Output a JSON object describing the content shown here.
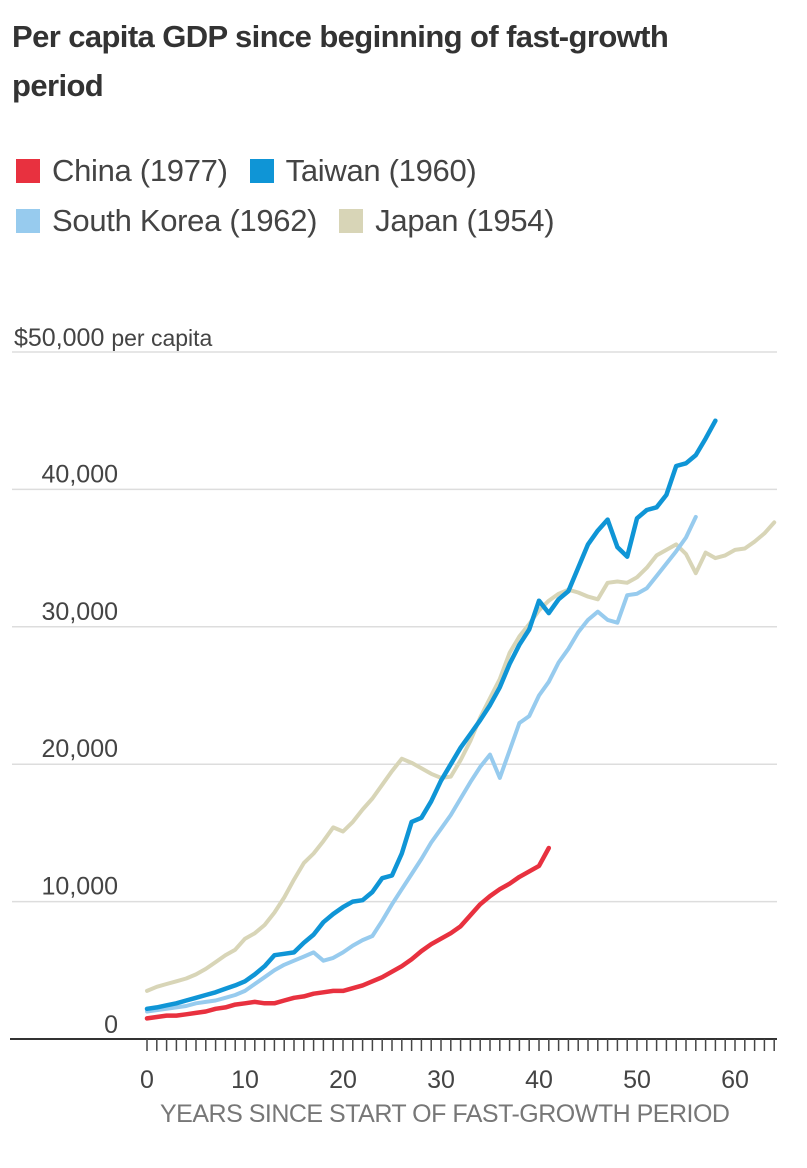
{
  "chart_data": {
    "type": "line",
    "title": "Per capita GDP since beginning of fast-growth period",
    "xlabel": "YEARS SINCE START OF FAST-GROWTH PERIOD",
    "ylabel": "$50,000 per capita",
    "xlim": [
      0,
      64
    ],
    "ylim": [
      0,
      50000
    ],
    "grid": true,
    "legend_position": "top-left",
    "y_ticks": [
      {
        "value": 0,
        "label": "0"
      },
      {
        "value": 10000,
        "label": "10,000"
      },
      {
        "value": 20000,
        "label": "20,000"
      },
      {
        "value": 30000,
        "label": "30,000"
      },
      {
        "value": 40000,
        "label": "40,000"
      },
      {
        "value": 50000,
        "label": "$50,000",
        "suffix": "per capita"
      }
    ],
    "x_ticks": [
      {
        "value": 0,
        "label": "0"
      },
      {
        "value": 10,
        "label": "10"
      },
      {
        "value": 20,
        "label": "20"
      },
      {
        "value": 30,
        "label": "30"
      },
      {
        "value": 40,
        "label": "40"
      },
      {
        "value": 50,
        "label": "50"
      },
      {
        "value": 60,
        "label": "60"
      }
    ],
    "series": [
      {
        "name": "Japan (1954)",
        "color": "#d8d5b7",
        "values": [
          3500,
          3800,
          4000,
          4200,
          4400,
          4700,
          5100,
          5600,
          6100,
          6500,
          7300,
          7700,
          8300,
          9200,
          10300,
          11600,
          12800,
          13500,
          14400,
          15400,
          15100,
          15800,
          16700,
          17500,
          18500,
          19500,
          20400,
          20100,
          19700,
          19300,
          19000,
          19100,
          20300,
          21700,
          23400,
          24800,
          26200,
          28100,
          29300,
          30200,
          31200,
          31900,
          32400,
          32700,
          32500,
          32200,
          32000,
          33200,
          33300,
          33200,
          33600,
          34300,
          35200,
          35600,
          36000,
          35300,
          33900,
          35400,
          35000,
          35200,
          35600,
          35700,
          36200,
          36800,
          37600
        ]
      },
      {
        "name": "South Korea (1962)",
        "color": "#97cbee",
        "values": [
          2000,
          2100,
          2200,
          2300,
          2400,
          2600,
          2700,
          2800,
          3000,
          3200,
          3500,
          4000,
          4500,
          5000,
          5400,
          5700,
          6000,
          6300,
          5700,
          5900,
          6300,
          6800,
          7200,
          7500,
          8600,
          9800,
          10900,
          12000,
          13100,
          14300,
          15300,
          16300,
          17500,
          18700,
          19800,
          20700,
          19000,
          21000,
          23000,
          23500,
          25000,
          26000,
          27400,
          28400,
          29600,
          30500,
          31100,
          30500,
          30300,
          32300,
          32400,
          32800,
          33700,
          34600,
          35500,
          36500,
          38000
        ]
      },
      {
        "name": "Taiwan (1960)",
        "color": "#0f95d6",
        "values": [
          2200,
          2300,
          2450,
          2600,
          2800,
          3000,
          3200,
          3400,
          3650,
          3900,
          4200,
          4700,
          5300,
          6100,
          6200,
          6300,
          7000,
          7600,
          8500,
          9100,
          9600,
          10000,
          10100,
          10700,
          11700,
          11900,
          13500,
          15800,
          16100,
          17300,
          18800,
          20000,
          21200,
          22200,
          23200,
          24300,
          25600,
          27300,
          28700,
          29800,
          31900,
          31000,
          32000,
          32600,
          34300,
          36000,
          37000,
          37800,
          35800,
          35100,
          37900,
          38500,
          38700,
          39600,
          41700,
          41900,
          42500,
          43700,
          45000
        ]
      },
      {
        "name": "China (1977)",
        "color": "#e8313f",
        "values": [
          1500,
          1600,
          1700,
          1700,
          1800,
          1900,
          2000,
          2200,
          2300,
          2500,
          2600,
          2700,
          2600,
          2600,
          2800,
          3000,
          3100,
          3300,
          3400,
          3500,
          3500,
          3700,
          3900,
          4200,
          4500,
          4900,
          5300,
          5800,
          6400,
          6900,
          7300,
          7700,
          8200,
          9000,
          9800,
          10400,
          10900,
          11300,
          11800,
          12200,
          12600,
          13900
        ]
      }
    ]
  }
}
